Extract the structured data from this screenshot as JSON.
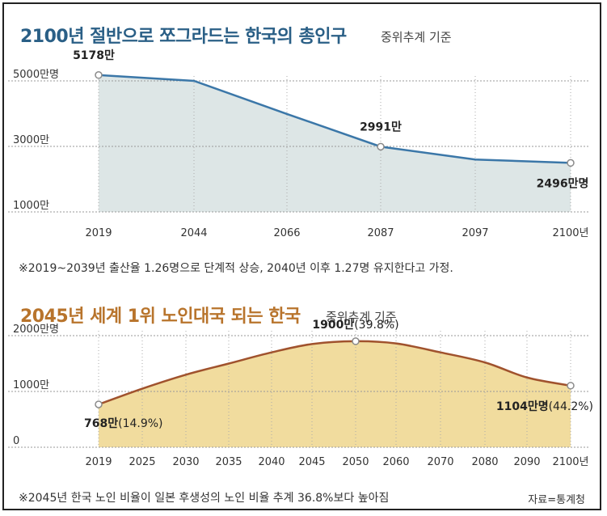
{
  "chart_data": [
    {
      "type": "area",
      "title": "2100년 절반으로 쪼그라드는 한국의 총인구",
      "subtitle": "중위추계 기준",
      "y_tick_labels": [
        "5000만명",
        "3000만",
        "1000만"
      ],
      "y_tick_values": [
        5000,
        3000,
        1000
      ],
      "ylim": [
        1000,
        5000
      ],
      "x_tick_labels": [
        "2019",
        "2044",
        "2066",
        "2087",
        "2097",
        "2100년"
      ],
      "x": [
        2019,
        2044,
        2066,
        2087,
        2097,
        2100
      ],
      "values": [
        5178,
        5000,
        3990,
        2991,
        2600,
        2496
      ],
      "data_labels": [
        {
          "index": 0,
          "text": "5178만"
        },
        {
          "index": 3,
          "text": "2991만"
        },
        {
          "index": 5,
          "text": "2496만명"
        }
      ],
      "colors": {
        "line": "#3b77a8",
        "fill": "#dde6e6",
        "title": "#2a5f86"
      },
      "note": "※2019~2039년 출산율 1.26명으로 단계적 상승, 2040년 이후 1.27명 유지한다고 가정.",
      "grid": "horizontal-dashed"
    },
    {
      "type": "area",
      "title": "2045년 세계 1위 노인대국 되는 한국",
      "subtitle": "중위추계 기준",
      "y_tick_labels": [
        "2000만명",
        "1000만",
        "0"
      ],
      "y_tick_values": [
        2000,
        1000,
        0
      ],
      "ylim": [
        0,
        2000
      ],
      "x_tick_labels": [
        "2019",
        "2025",
        "2030",
        "2035",
        "2040",
        "2045",
        "2050",
        "2060",
        "2070",
        "2080",
        "2090",
        "2100년"
      ],
      "x": [
        2019,
        2025,
        2030,
        2035,
        2040,
        2045,
        2050,
        2060,
        2070,
        2080,
        2090,
        2100
      ],
      "values": [
        768,
        1050,
        1300,
        1500,
        1700,
        1850,
        1900,
        1860,
        1700,
        1520,
        1250,
        1104
      ],
      "data_labels": [
        {
          "index": 0,
          "bold": "768만",
          "rest": "(14.9%)"
        },
        {
          "index": 6,
          "bold": "1900만",
          "rest": "(39.8%)"
        },
        {
          "index": 11,
          "bold": "1104만명",
          "rest": "(44.2%)"
        }
      ],
      "colors": {
        "line": "#a0522d",
        "fill": "#f1dc9e",
        "title": "#b8742c"
      },
      "note": "※2045년 한국 노인 비율이 일본 후생성의 노인 비율 추계 36.8%보다 높아짐",
      "grid": "horizontal-dashed"
    }
  ],
  "source": "자료=통계청"
}
